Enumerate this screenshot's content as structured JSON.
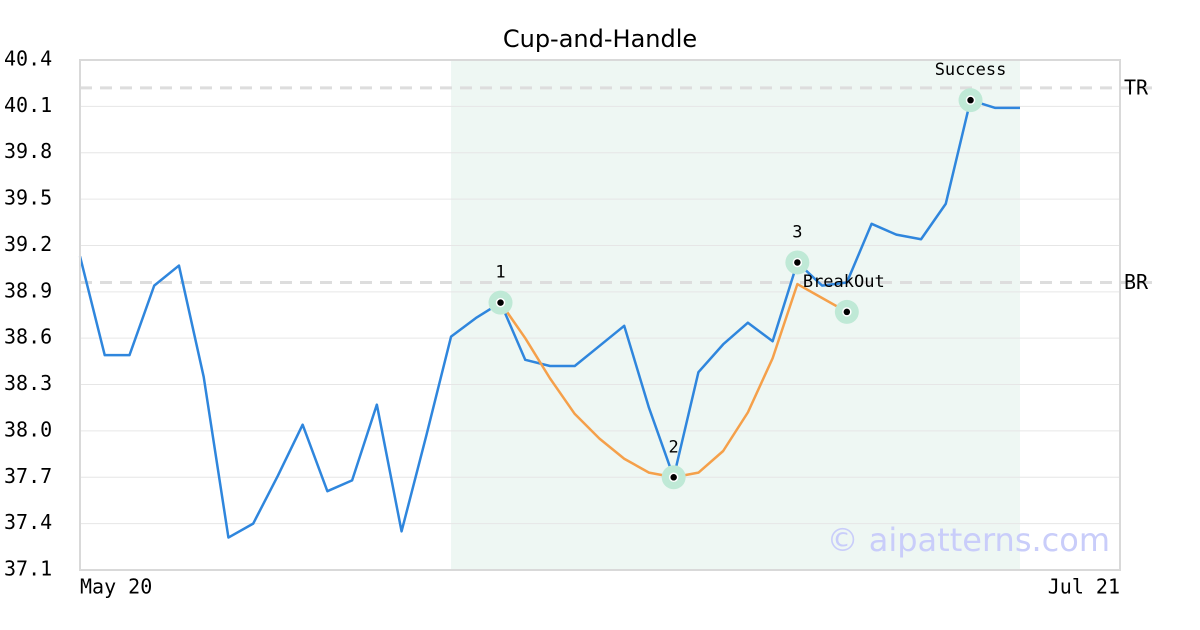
{
  "chart_data": {
    "type": "line",
    "title": "Cup-and-Handle",
    "categories": [
      "May 20",
      null,
      null,
      null,
      null,
      null,
      null,
      null,
      null,
      null,
      null,
      null,
      null,
      null,
      null,
      null,
      null,
      null,
      null,
      null,
      null,
      null,
      null,
      null,
      null,
      null,
      null,
      null,
      null,
      null,
      null,
      null,
      null,
      null,
      null,
      null,
      null,
      null,
      "Jul 21"
    ],
    "series": [
      {
        "color": "#2f86dd",
        "values": [
          39.13,
          38.49,
          38.49,
          38.94,
          39.07,
          38.35,
          37.31,
          37.4,
          37.71,
          38.04,
          37.61,
          37.68,
          38.17,
          37.35,
          37.97,
          38.61,
          38.73,
          38.83,
          38.46,
          38.42,
          38.42,
          38.55,
          38.68,
          38.15,
          37.7,
          38.38,
          38.56,
          38.7,
          38.58,
          39.09,
          38.94,
          38.96,
          39.34,
          39.27,
          39.24,
          39.47,
          40.14,
          40.09,
          40.09
        ]
      },
      {
        "color": "#f5a04a",
        "values": [
          null,
          null,
          null,
          null,
          null,
          null,
          null,
          null,
          null,
          null,
          null,
          null,
          null,
          null,
          null,
          null,
          null,
          38.83,
          38.6,
          38.34,
          38.11,
          37.95,
          37.82,
          37.73,
          37.7,
          37.73,
          37.87,
          38.12,
          38.47,
          38.95,
          38.86,
          38.77,
          null,
          null,
          null,
          null,
          null,
          null,
          null
        ]
      }
    ],
    "ylim": [
      37.1,
      40.4
    ],
    "yticks": [
      37.1,
      37.4,
      37.7,
      {
        "value": 38,
        "label": "38.0"
      },
      38.3,
      38.6,
      38.9,
      39.2,
      39.5,
      39.8,
      40.1,
      40.4
    ],
    "grid": true,
    "highlight": {
      "start": 15,
      "end": 38,
      "color": "#eef7f3"
    },
    "levels": [
      {
        "label": "TR",
        "value": 40.22
      },
      {
        "label": "BR",
        "value": 38.96
      }
    ],
    "annotations": [
      {
        "label": "1",
        "index": 17,
        "value": 38.83
      },
      {
        "label": "2",
        "index": 24,
        "value": 37.7
      },
      {
        "label": "3",
        "index": 29,
        "value": 39.09
      },
      {
        "label": "BreakOut",
        "index": 31,
        "value": 38.77
      },
      {
        "label": "Success",
        "index": 36,
        "value": 40.14
      }
    ],
    "watermark": "© aipatterns.com"
  }
}
